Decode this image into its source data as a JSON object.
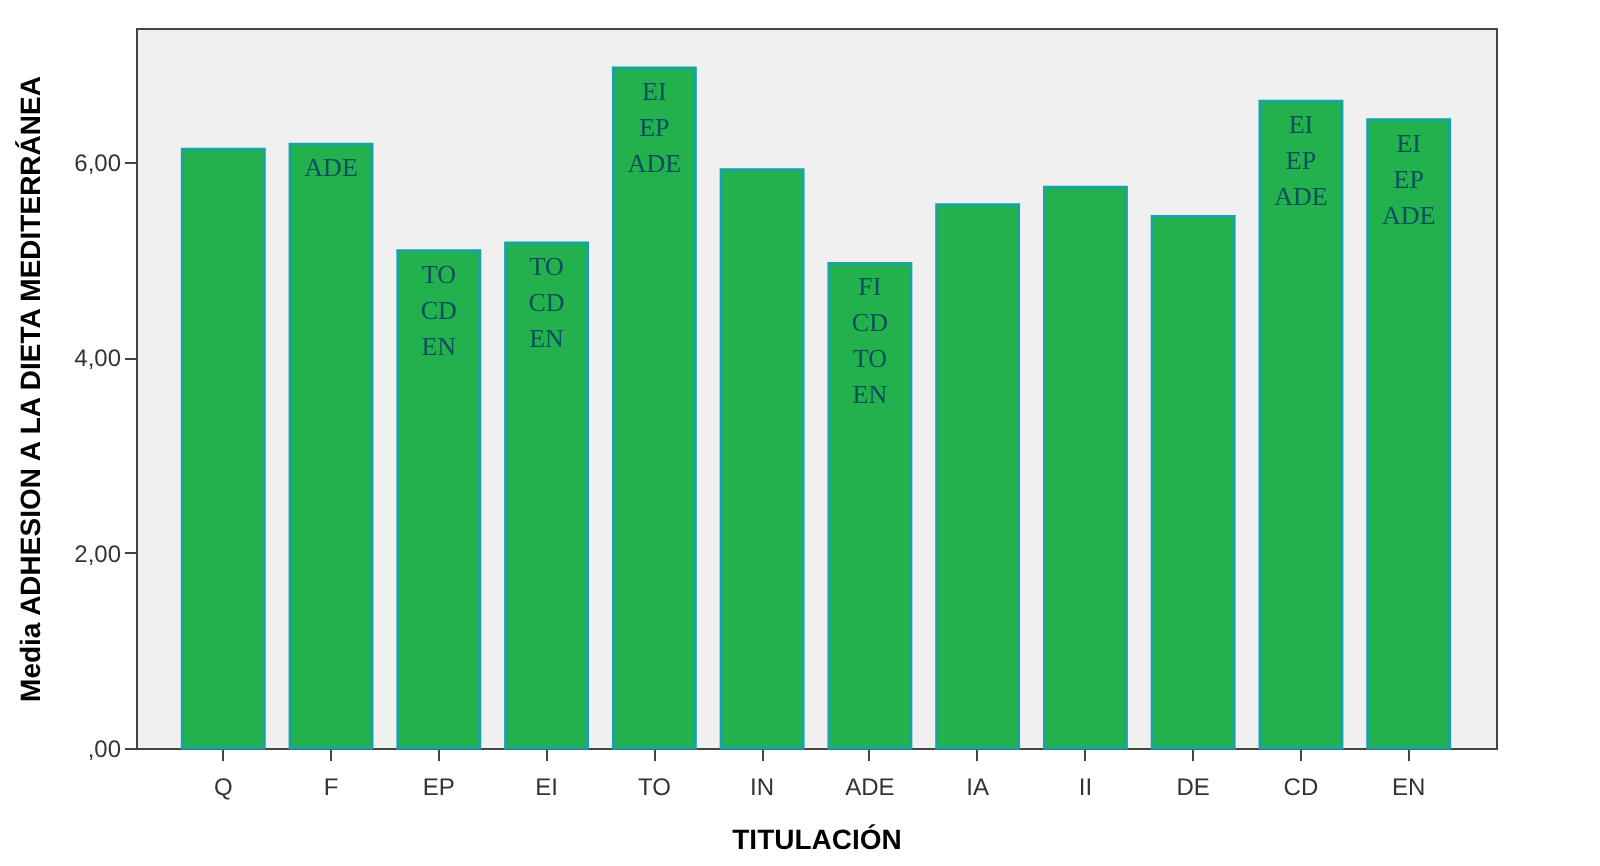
{
  "chart_data": {
    "type": "bar",
    "xlabel": "TITULACIÓN",
    "ylabel": "Media ADHESION A LA DIETA MEDITERRÁNEA",
    "categories": [
      "Q",
      "F",
      "EP",
      "EI",
      "TO",
      "IN",
      "ADE",
      "IA",
      "II",
      "DE",
      "CD",
      "EN"
    ],
    "values": [
      6.13,
      6.18,
      5.09,
      5.17,
      6.96,
      5.92,
      4.96,
      5.56,
      5.74,
      5.44,
      6.62,
      6.43
    ],
    "color": "#22b14c",
    "ylim": [
      0,
      7.37
    ],
    "yticks": [
      {
        "value": 0,
        "label": ",00"
      },
      {
        "value": 2,
        "label": "2,00"
      },
      {
        "value": 4,
        "label": "4,00"
      },
      {
        "value": 6,
        "label": "6,00"
      }
    ],
    "grid": false,
    "annotations": [
      {
        "text": "ADE",
        "x": "F",
        "y": 6.18
      },
      {
        "text": "TO\nCD\nEN",
        "x": "EP",
        "y": 5.09
      },
      {
        "text": "TO\nCD\nEN",
        "x": "EI",
        "y": 5.17
      },
      {
        "text": "EI\nEP\nADE",
        "x": "TO",
        "y": 6.96
      },
      {
        "text": "FI\nCD\nTO\nEN",
        "x": "ADE",
        "y": 4.96
      },
      {
        "text": "EI\nEP\nADE",
        "x": "CD",
        "y": 6.62
      },
      {
        "text": "EI\nEP\nADE",
        "x": "EN",
        "y": 6.43
      }
    ]
  }
}
